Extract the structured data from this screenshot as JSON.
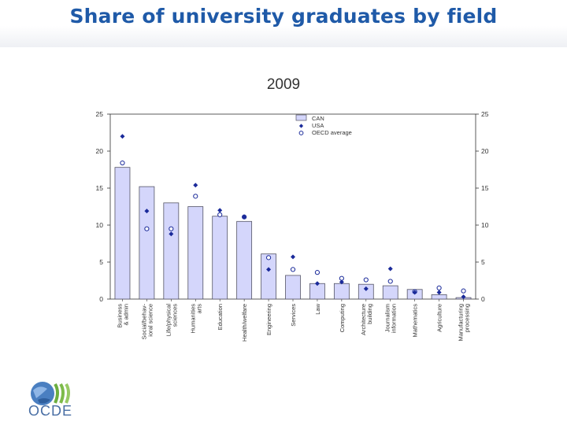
{
  "slide": {
    "title": "Share of university graduates by field",
    "logo_text": "OCDE"
  },
  "colors": {
    "title": "#1f5aa8",
    "bar_fill": "#d4d6fb",
    "bar_stroke": "#555566",
    "usa_marker": "#1a2a9a",
    "oecd_marker": "#1a2a9a"
  },
  "chart_data": {
    "type": "bar",
    "title": "2009",
    "ylim": [
      0,
      25
    ],
    "yticks": [
      0,
      5,
      10,
      15,
      20,
      25
    ],
    "grid": false,
    "legend_position": "top-right",
    "categories": [
      "Business\n& admin",
      "Social/behav-\nioral science",
      "Life/physical\nsciences",
      "Humanities\narts",
      "Education",
      "Health/welfare",
      "Engineering",
      "Services",
      "Law",
      "Computing",
      "Architecture\nbuilding",
      "Journalism\ninformation",
      "Mathematics",
      "Agriculture",
      "Manufacturing\nprocessing"
    ],
    "series": [
      {
        "name": "CAN",
        "kind": "bar",
        "values": [
          17.8,
          15.2,
          13.0,
          12.5,
          11.2,
          10.5,
          6.1,
          3.2,
          2.1,
          2.1,
          2.0,
          1.8,
          1.3,
          0.6,
          0.2
        ]
      },
      {
        "name": "USA",
        "kind": "filled-marker",
        "values": [
          22.0,
          11.9,
          8.8,
          15.4,
          12.0,
          11.1,
          4.0,
          5.7,
          2.1,
          2.3,
          1.4,
          4.1,
          0.9,
          0.9,
          0.3
        ]
      },
      {
        "name": "OECD average",
        "kind": "open-marker",
        "values": [
          18.4,
          9.5,
          9.5,
          13.9,
          11.4,
          11.1,
          5.6,
          4.0,
          3.6,
          2.8,
          2.6,
          2.4,
          1.0,
          1.5,
          1.1
        ]
      }
    ]
  }
}
